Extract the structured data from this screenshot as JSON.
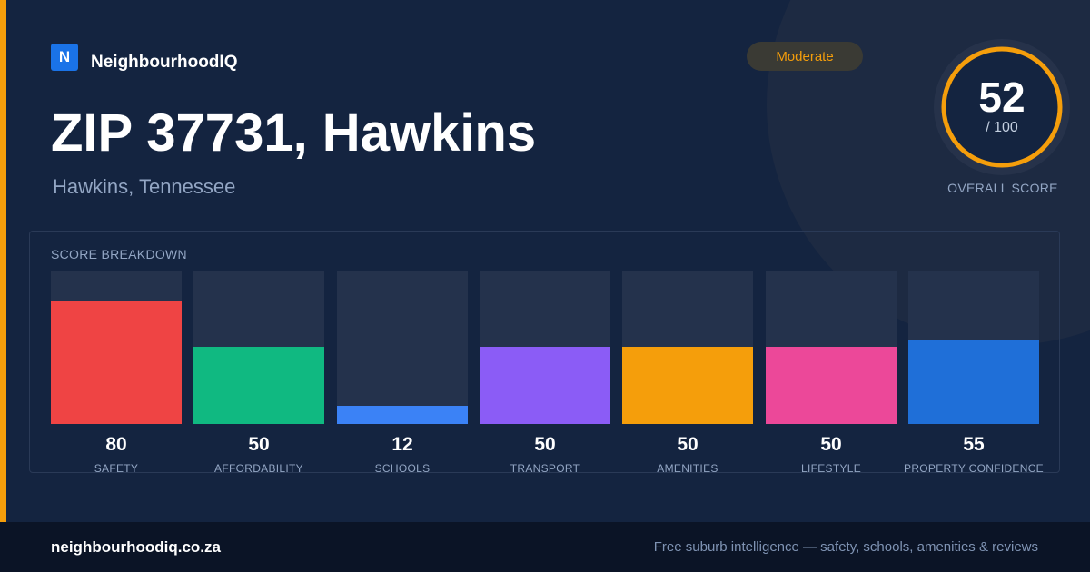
{
  "brand": {
    "logo_letter": "N",
    "name": "NeighbourhoodIQ"
  },
  "badge": {
    "label": "Moderate",
    "color": "#f59e0b"
  },
  "location": {
    "title": "ZIP 37731, Hawkins",
    "subtitle": "Hawkins, Tennessee"
  },
  "overall": {
    "score": "52",
    "max": "/ 100",
    "score_fraction": 0.52,
    "label": "OVERALL SCORE",
    "ring_color": "#f59e0b"
  },
  "breakdown": {
    "title": "SCORE BREAKDOWN",
    "categories": [
      {
        "label": "SAFETY",
        "value": "80",
        "color": "#ef4444"
      },
      {
        "label": "AFFORDABILITY",
        "value": "50",
        "color": "#10b981"
      },
      {
        "label": "SCHOOLS",
        "value": "12",
        "color": "#3b82f6"
      },
      {
        "label": "TRANSPORT",
        "value": "50",
        "color": "#8b5cf6"
      },
      {
        "label": "AMENITIES",
        "value": "50",
        "color": "#f59e0b"
      },
      {
        "label": "LIFESTYLE",
        "value": "50",
        "color": "#ec4899"
      },
      {
        "label": "PROPERTY CONFIDENCE",
        "value": "55",
        "color": "#1f6fd8"
      }
    ]
  },
  "footer": {
    "url": "neighbourhoodiq.co.za",
    "tagline": "Free suburb intelligence — safety, schools, amenities & reviews"
  }
}
